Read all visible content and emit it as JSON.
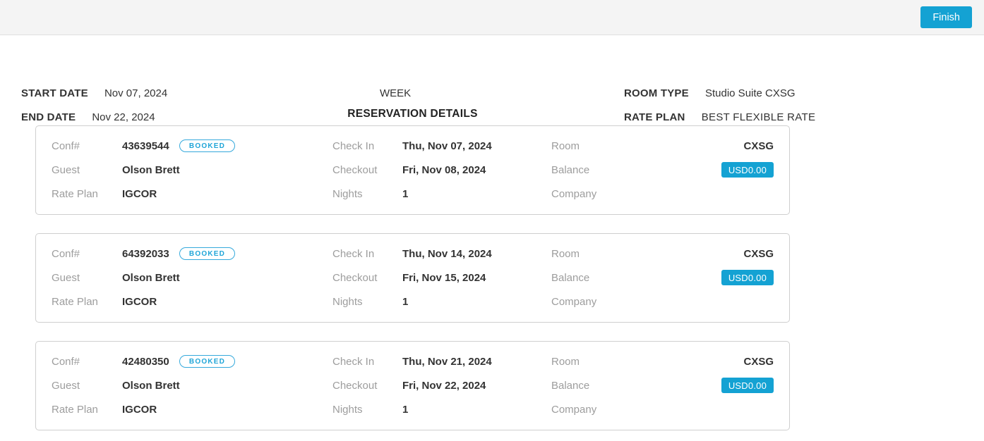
{
  "topbar": {
    "finish_label": "Finish"
  },
  "header": {
    "start_date": {
      "label": "START DATE",
      "value": "Nov 07, 2024"
    },
    "end_date": {
      "label": "END DATE",
      "value": "Nov 22, 2024"
    },
    "view_mode": "WEEK",
    "room_type": {
      "label": "ROOM TYPE",
      "value": "Studio Suite CXSG"
    },
    "rate_plan": {
      "label": "RATE PLAN",
      "value": "BEST FLEXIBLE RATE"
    }
  },
  "section_title": "RESERVATION DETAILS",
  "field_labels": {
    "conf": "Conf#",
    "guest": "Guest",
    "rate_plan": "Rate Plan",
    "check_in": "Check In",
    "checkout": "Checkout",
    "nights": "Nights",
    "room": "Room",
    "balance": "Balance",
    "company": "Company"
  },
  "reservations": [
    {
      "conf": "43639544",
      "status": "BOOKED",
      "guest": "Olson Brett",
      "rate_plan": "IGCOR",
      "check_in": "Thu, Nov 07, 2024",
      "checkout": "Fri, Nov 08, 2024",
      "nights": "1",
      "room": "CXSG",
      "balance": "USD0.00",
      "company": ""
    },
    {
      "conf": "64392033",
      "status": "BOOKED",
      "guest": "Olson Brett",
      "rate_plan": "IGCOR",
      "check_in": "Thu, Nov 14, 2024",
      "checkout": "Fri, Nov 15, 2024",
      "nights": "1",
      "room": "CXSG",
      "balance": "USD0.00",
      "company": ""
    },
    {
      "conf": "42480350",
      "status": "BOOKED",
      "guest": "Olson Brett",
      "rate_plan": "IGCOR",
      "check_in": "Thu, Nov 21, 2024",
      "checkout": "Fri, Nov 22, 2024",
      "nights": "1",
      "room": "CXSG",
      "balance": "USD0.00",
      "company": ""
    }
  ],
  "colors": {
    "accent": "#14a2d3",
    "booked_badge": "#2ca8db",
    "label_gray": "#9d9d9d",
    "value_dark": "#333333",
    "topbar_bg": "#f4f4f4",
    "card_border": "#cfcfcf"
  }
}
